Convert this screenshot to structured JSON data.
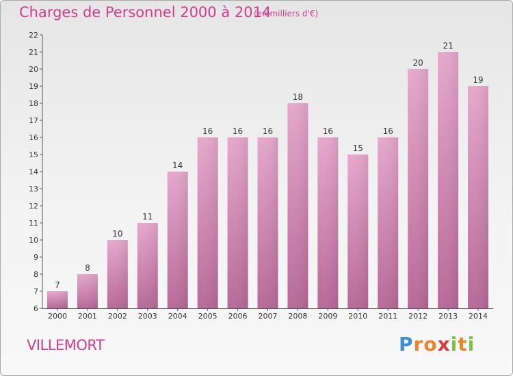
{
  "chart_data": {
    "type": "bar",
    "title": "Charges de Personnel 2000 à 2014",
    "subtitle": "(en milliers d'€)",
    "categories": [
      "2000",
      "2001",
      "2002",
      "2003",
      "2004",
      "2005",
      "2006",
      "2007",
      "2008",
      "2009",
      "2010",
      "2011",
      "2012",
      "2013",
      "2014"
    ],
    "values": [
      7,
      8,
      10,
      11,
      14,
      16,
      16,
      16,
      18,
      16,
      15,
      16,
      20,
      21,
      19
    ],
    "ylim": [
      6,
      22
    ],
    "yticks": [
      6,
      7,
      8,
      9,
      10,
      11,
      12,
      13,
      14,
      15,
      16,
      17,
      18,
      19,
      20,
      21,
      22
    ],
    "grid": false,
    "bar_color": "#d98fb8"
  },
  "footer": {
    "commune": "VILLEMORT",
    "logo_letters": [
      "P",
      "r",
      "o",
      "x",
      "i",
      "t",
      "i"
    ],
    "logo_colors": [
      "#3a8fd6",
      "#e8842a",
      "#e8842a",
      "#d93a3a",
      "#7cc243",
      "#e8842a",
      "#7cc243"
    ]
  }
}
